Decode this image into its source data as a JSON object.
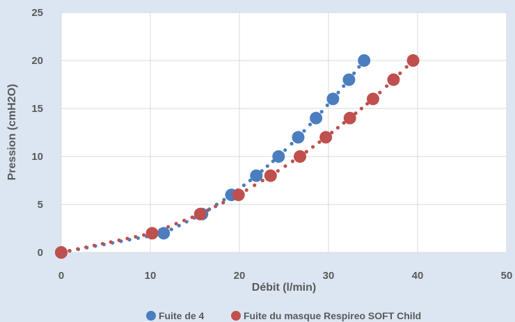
{
  "chart_data": {
    "type": "scatter",
    "title": "",
    "xlabel": "Débit (l/min)",
    "ylabel": "Pression (cmH2O)",
    "xlim": [
      0,
      50
    ],
    "ylim": [
      0,
      25
    ],
    "x_ticks": [
      "0",
      "10",
      "20",
      "30",
      "40",
      "50"
    ],
    "y_ticks": [
      "0",
      "5",
      "10",
      "15",
      "20",
      "25"
    ],
    "grid": true,
    "legend_position": "bottom",
    "series": [
      {
        "name": "Fuite de 4",
        "color": "#4a7ebf",
        "points": [
          {
            "x": 0,
            "y": 0
          },
          {
            "x": 11.5,
            "y": 2
          },
          {
            "x": 15.8,
            "y": 4
          },
          {
            "x": 19.1,
            "y": 6
          },
          {
            "x": 21.9,
            "y": 8
          },
          {
            "x": 24.4,
            "y": 10
          },
          {
            "x": 26.6,
            "y": 12
          },
          {
            "x": 28.6,
            "y": 14
          },
          {
            "x": 30.5,
            "y": 16
          },
          {
            "x": 32.3,
            "y": 18
          },
          {
            "x": 34.0,
            "y": 20
          }
        ]
      },
      {
        "name": "Fuite du masque Respireo SOFT Child",
        "color": "#c0504d",
        "points": [
          {
            "x": 0,
            "y": 0
          },
          {
            "x": 10.2,
            "y": 2
          },
          {
            "x": 15.6,
            "y": 4
          },
          {
            "x": 19.9,
            "y": 6
          },
          {
            "x": 23.5,
            "y": 8
          },
          {
            "x": 26.8,
            "y": 10
          },
          {
            "x": 29.7,
            "y": 12
          },
          {
            "x": 32.4,
            "y": 14
          },
          {
            "x": 35.0,
            "y": 16
          },
          {
            "x": 37.3,
            "y": 18
          },
          {
            "x": 39.5,
            "y": 20
          }
        ]
      }
    ]
  }
}
